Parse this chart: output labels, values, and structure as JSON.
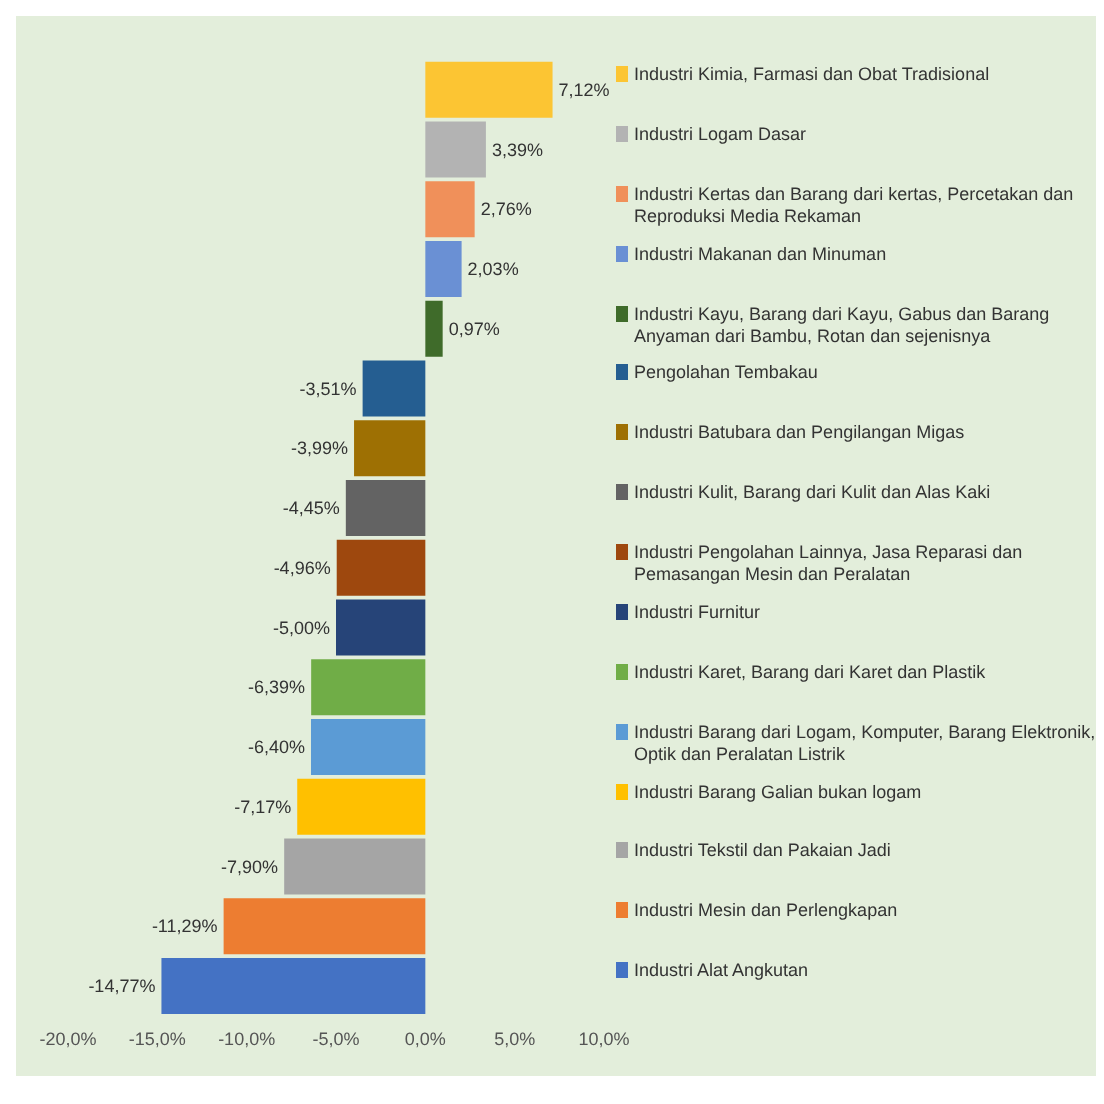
{
  "chart_data": {
    "type": "bar",
    "orientation": "horizontal",
    "stacked": true,
    "categories": [
      null,
      null,
      null,
      null,
      null,
      null,
      null,
      null,
      null,
      null,
      null,
      null,
      null,
      null,
      null,
      null
    ],
    "series": [
      {
        "name": "Industri Kimia, Farmasi dan Obat Tradisional",
        "color": "#fcc533",
        "values": [
          7.12,
          null,
          null,
          null,
          null,
          null,
          null,
          null,
          null,
          null,
          null,
          null,
          null,
          null,
          null,
          null
        ],
        "value_labels": [
          "7,12%",
          null,
          null,
          null,
          null,
          null,
          null,
          null,
          null,
          null,
          null,
          null,
          null,
          null,
          null,
          null
        ]
      },
      {
        "name": "Industri Logam Dasar",
        "color": "#b3b3b3",
        "values": [
          null,
          3.39,
          null,
          null,
          null,
          null,
          null,
          null,
          null,
          null,
          null,
          null,
          null,
          null,
          null,
          null
        ],
        "value_labels": [
          null,
          "3,39%",
          null,
          null,
          null,
          null,
          null,
          null,
          null,
          null,
          null,
          null,
          null,
          null,
          null,
          null
        ]
      },
      {
        "name": "Industri Kertas dan Barang dari kertas, Percetakan dan Reproduksi Media Rekaman",
        "color": "#f0905a",
        "values": [
          null,
          null,
          2.76,
          null,
          null,
          null,
          null,
          null,
          null,
          null,
          null,
          null,
          null,
          null,
          null,
          null
        ],
        "value_labels": [
          null,
          null,
          "2,76%",
          null,
          null,
          null,
          null,
          null,
          null,
          null,
          null,
          null,
          null,
          null,
          null,
          null
        ]
      },
      {
        "name": "Industri Makanan dan Minuman",
        "color": "#6a90d4",
        "values": [
          null,
          null,
          null,
          2.03,
          null,
          null,
          null,
          null,
          null,
          null,
          null,
          null,
          null,
          null,
          null,
          null
        ],
        "value_labels": [
          null,
          null,
          null,
          "2,03%",
          null,
          null,
          null,
          null,
          null,
          null,
          null,
          null,
          null,
          null,
          null,
          null
        ]
      },
      {
        "name": "Industri Kayu, Barang dari Kayu, Gabus dan Barang Anyaman dari Bambu, Rotan dan sejenisnya",
        "color": "#3f6b2a",
        "values": [
          null,
          null,
          null,
          null,
          0.97,
          null,
          null,
          null,
          null,
          null,
          null,
          null,
          null,
          null,
          null,
          null
        ],
        "value_labels": [
          null,
          null,
          null,
          null,
          "0,97%",
          null,
          null,
          null,
          null,
          null,
          null,
          null,
          null,
          null,
          null,
          null
        ]
      },
      {
        "name": "Pengolahan Tembakau",
        "color": "#255e91",
        "values": [
          null,
          null,
          null,
          null,
          null,
          -3.51,
          null,
          null,
          null,
          null,
          null,
          null,
          null,
          null,
          null,
          null
        ],
        "value_labels": [
          null,
          null,
          null,
          null,
          null,
          "-3,51%",
          null,
          null,
          null,
          null,
          null,
          null,
          null,
          null,
          null,
          null
        ]
      },
      {
        "name": "Industri Batubara dan Pengilangan Migas",
        "color": "#9e7003",
        "values": [
          null,
          null,
          null,
          null,
          null,
          null,
          -3.99,
          null,
          null,
          null,
          null,
          null,
          null,
          null,
          null,
          null
        ],
        "value_labels": [
          null,
          null,
          null,
          null,
          null,
          null,
          "-3,99%",
          null,
          null,
          null,
          null,
          null,
          null,
          null,
          null,
          null
        ]
      },
      {
        "name": "Industri Kulit, Barang dari Kulit dan Alas Kaki",
        "color": "#636363",
        "values": [
          null,
          null,
          null,
          null,
          null,
          null,
          null,
          -4.45,
          null,
          null,
          null,
          null,
          null,
          null,
          null,
          null
        ],
        "value_labels": [
          null,
          null,
          null,
          null,
          null,
          null,
          null,
          "-4,45%",
          null,
          null,
          null,
          null,
          null,
          null,
          null,
          null
        ]
      },
      {
        "name": "Industri Pengolahan Lainnya, Jasa Reparasi dan Pemasangan Mesin dan Peralatan",
        "color": "#9e480e",
        "values": [
          null,
          null,
          null,
          null,
          null,
          null,
          null,
          null,
          -4.96,
          null,
          null,
          null,
          null,
          null,
          null,
          null
        ],
        "value_labels": [
          null,
          null,
          null,
          null,
          null,
          null,
          null,
          null,
          "-4,96%",
          null,
          null,
          null,
          null,
          null,
          null,
          null
        ]
      },
      {
        "name": "Industri Furnitur",
        "color": "#264478",
        "values": [
          null,
          null,
          null,
          null,
          null,
          null,
          null,
          null,
          null,
          -5.0,
          null,
          null,
          null,
          null,
          null,
          null
        ],
        "value_labels": [
          null,
          null,
          null,
          null,
          null,
          null,
          null,
          null,
          null,
          "-5,00%",
          null,
          null,
          null,
          null,
          null,
          null
        ]
      },
      {
        "name": "Industri Karet, Barang dari Karet dan Plastik",
        "color": "#70ad47",
        "values": [
          null,
          null,
          null,
          null,
          null,
          null,
          null,
          null,
          null,
          null,
          -6.39,
          null,
          null,
          null,
          null,
          null
        ],
        "value_labels": [
          null,
          null,
          null,
          null,
          null,
          null,
          null,
          null,
          null,
          null,
          "-6,39%",
          null,
          null,
          null,
          null,
          null
        ]
      },
      {
        "name": "Industri Barang dari Logam, Komputer, Barang Elektronik, Optik dan Peralatan Listrik",
        "color": "#5b9bd5",
        "values": [
          null,
          null,
          null,
          null,
          null,
          null,
          null,
          null,
          null,
          null,
          null,
          -6.4,
          null,
          null,
          null,
          null
        ],
        "value_labels": [
          null,
          null,
          null,
          null,
          null,
          null,
          null,
          null,
          null,
          null,
          null,
          "-6,40%",
          null,
          null,
          null,
          null
        ]
      },
      {
        "name": "Industri Barang Galian bukan logam",
        "color": "#ffc000",
        "values": [
          null,
          null,
          null,
          null,
          null,
          null,
          null,
          null,
          null,
          null,
          null,
          null,
          -7.17,
          null,
          null,
          null
        ],
        "value_labels": [
          null,
          null,
          null,
          null,
          null,
          null,
          null,
          null,
          null,
          null,
          null,
          null,
          "-7,17%",
          null,
          null,
          null
        ]
      },
      {
        "name": "Industri Tekstil dan Pakaian Jadi",
        "color": "#a5a5a5",
        "values": [
          null,
          null,
          null,
          null,
          null,
          null,
          null,
          null,
          null,
          null,
          null,
          null,
          null,
          -7.9,
          null,
          null
        ],
        "value_labels": [
          null,
          null,
          null,
          null,
          null,
          null,
          null,
          null,
          null,
          null,
          null,
          null,
          null,
          "-7,90%",
          null,
          null
        ]
      },
      {
        "name": "Industri Mesin dan Perlengkapan",
        "color": "#ed7d31",
        "values": [
          null,
          null,
          null,
          null,
          null,
          null,
          null,
          null,
          null,
          null,
          null,
          null,
          null,
          null,
          -11.29,
          null
        ],
        "value_labels": [
          null,
          null,
          null,
          null,
          null,
          null,
          null,
          null,
          null,
          null,
          null,
          null,
          null,
          null,
          "-11,29%",
          null
        ]
      },
      {
        "name": "Industri Alat Angkutan",
        "color": "#4472c4",
        "values": [
          null,
          null,
          null,
          null,
          null,
          null,
          null,
          null,
          null,
          null,
          null,
          null,
          null,
          null,
          null,
          -14.77
        ],
        "value_labels": [
          null,
          null,
          null,
          null,
          null,
          null,
          null,
          null,
          null,
          null,
          null,
          null,
          null,
          null,
          null,
          "-14,77%"
        ]
      }
    ],
    "xlim": [
      -20,
      10
    ],
    "xticks": [
      {
        "value": -20,
        "label": "-20,0%"
      },
      {
        "value": -15,
        "label": "-15,0%"
      },
      {
        "value": -10,
        "label": "-10,0%"
      },
      {
        "value": -5,
        "label": "-5,0%"
      },
      {
        "value": 0,
        "label": "0,0%"
      },
      {
        "value": 5,
        "label": "5,0%"
      },
      {
        "value": 10,
        "label": "10,0%"
      }
    ],
    "grid": false,
    "legend": "right"
  }
}
